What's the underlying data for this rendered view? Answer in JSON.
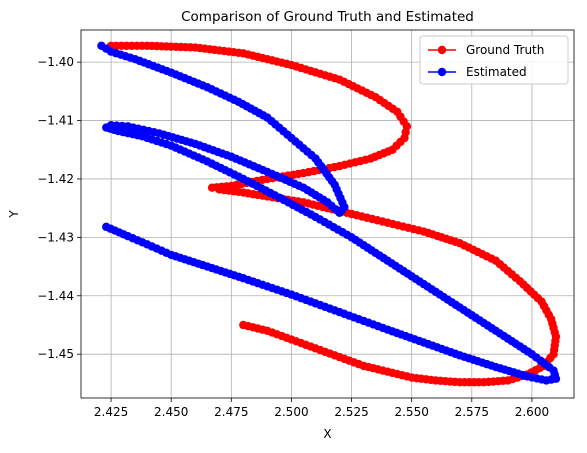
{
  "chart_data": {
    "type": "line",
    "title": "Comparison of Ground Truth and Estimated",
    "xlabel": "X",
    "ylabel": "Y",
    "xlim": [
      2.4125,
      2.6175
    ],
    "ylim": [
      -1.4575,
      -1.3945
    ],
    "xticks": [
      2.425,
      2.45,
      2.475,
      2.5,
      2.525,
      2.55,
      2.575,
      2.6
    ],
    "xtick_labels": [
      "2.425",
      "2.450",
      "2.475",
      "2.500",
      "2.525",
      "2.550",
      "2.575",
      "2.600"
    ],
    "yticks": [
      -1.4,
      -1.41,
      -1.42,
      -1.43,
      -1.44,
      -1.45
    ],
    "ytick_labels": [
      "−1.40",
      "−1.41",
      "−1.42",
      "−1.43",
      "−1.44",
      "−1.45"
    ],
    "grid": true,
    "legend_position": "top-right",
    "series": [
      {
        "name": "Ground Truth",
        "color": "#ff0000",
        "x": [
          2.48,
          2.49,
          2.5,
          2.51,
          2.52,
          2.53,
          2.54,
          2.55,
          2.56,
          2.57,
          2.58,
          2.59,
          2.598,
          2.605,
          2.609,
          2.61,
          2.608,
          2.604,
          2.595,
          2.585,
          2.57,
          2.555,
          2.54,
          2.525,
          2.505,
          2.49,
          2.478,
          2.47,
          2.467,
          2.475,
          2.49,
          2.505,
          2.52,
          2.533,
          2.542,
          2.547,
          2.548,
          2.544,
          2.535,
          2.52,
          2.5,
          2.48,
          2.46,
          2.44,
          2.425
        ],
        "y": [
          -1.445,
          -1.446,
          -1.4475,
          -1.449,
          -1.4505,
          -1.452,
          -1.453,
          -1.454,
          -1.4545,
          -1.4548,
          -1.4548,
          -1.4545,
          -1.4535,
          -1.452,
          -1.45,
          -1.447,
          -1.444,
          -1.441,
          -1.4375,
          -1.434,
          -1.431,
          -1.429,
          -1.4275,
          -1.426,
          -1.424,
          -1.423,
          -1.4222,
          -1.4218,
          -1.4215,
          -1.4212,
          -1.42,
          -1.419,
          -1.4178,
          -1.4165,
          -1.415,
          -1.413,
          -1.411,
          -1.4085,
          -1.406,
          -1.403,
          -1.4005,
          -1.3985,
          -1.3975,
          -1.3972,
          -1.3972
        ]
      },
      {
        "name": "Estimated",
        "color": "#0000ff",
        "x": [
          2.423,
          2.432,
          2.44,
          2.45,
          2.465,
          2.48,
          2.5,
          2.52,
          2.54,
          2.555,
          2.57,
          2.585,
          2.598,
          2.606,
          2.61,
          2.609,
          2.6,
          2.585,
          2.57,
          2.555,
          2.54,
          2.525,
          2.51,
          2.495,
          2.48,
          2.465,
          2.45,
          2.438,
          2.428,
          2.423,
          2.425,
          2.432,
          2.445,
          2.46,
          2.475,
          2.49,
          2.505,
          2.515,
          2.52,
          2.522,
          2.518,
          2.51,
          2.5,
          2.49,
          2.478,
          2.465,
          2.45,
          2.435,
          2.425,
          2.421
        ],
        "y": [
          -1.4282,
          -1.4298,
          -1.4312,
          -1.433,
          -1.435,
          -1.437,
          -1.4398,
          -1.4428,
          -1.4458,
          -1.448,
          -1.4502,
          -1.4522,
          -1.4538,
          -1.4545,
          -1.4542,
          -1.4528,
          -1.45,
          -1.446,
          -1.442,
          -1.438,
          -1.434,
          -1.43,
          -1.4265,
          -1.4232,
          -1.42,
          -1.417,
          -1.4143,
          -1.4127,
          -1.4118,
          -1.4112,
          -1.4108,
          -1.411,
          -1.4122,
          -1.414,
          -1.4162,
          -1.4188,
          -1.4215,
          -1.424,
          -1.4258,
          -1.4248,
          -1.421,
          -1.4165,
          -1.413,
          -1.4095,
          -1.4068,
          -1.4043,
          -1.4018,
          -1.3995,
          -1.3982,
          -1.3972
        ]
      }
    ]
  }
}
